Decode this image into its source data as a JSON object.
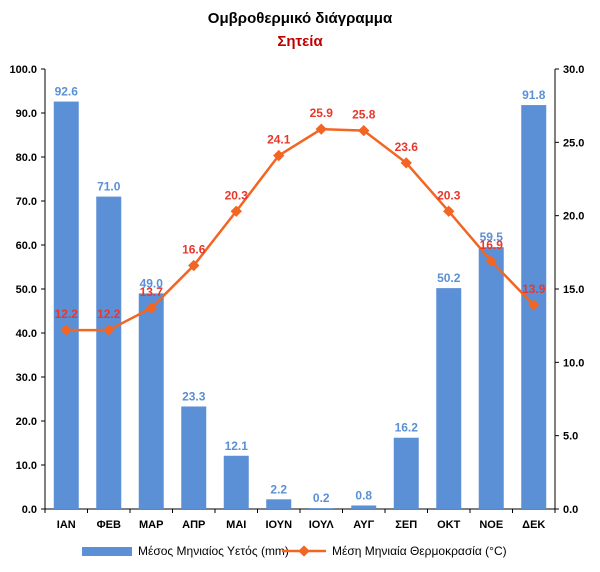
{
  "chart_data": {
    "type": "bar+line",
    "title": "Ομβροθερμικό διάγραμμα",
    "subtitle": "Σητεία",
    "categories": [
      "ΙΑΝ",
      "ΦΕΒ",
      "ΜΑΡ",
      "ΑΠΡ",
      "ΜΑΙ",
      "ΙΟΥΝ",
      "ΙΟΥΛ",
      "ΑΥΓ",
      "ΣΕΠ",
      "ΟΚΤ",
      "ΝΟΕ",
      "ΔΕΚ"
    ],
    "series": [
      {
        "name": "Μέσος Μηνιαίος Υετός (mm)",
        "kind": "bar",
        "axis": "left",
        "color": "#5b8fd6",
        "label_color": "#5b8fd6",
        "values": [
          92.6,
          71.0,
          49.0,
          23.3,
          12.1,
          2.2,
          0.2,
          0.8,
          16.2,
          50.2,
          59.5,
          91.8
        ]
      },
      {
        "name": "Μέση Μηνιαία Θερμοκρασία (°C)",
        "kind": "line",
        "axis": "right",
        "color": "#f26522",
        "label_color": "#e8372c",
        "values": [
          12.2,
          12.2,
          13.7,
          16.6,
          20.3,
          24.1,
          25.9,
          25.8,
          23.6,
          20.3,
          16.9,
          13.9
        ]
      }
    ],
    "y_left": {
      "min": 0,
      "max": 100,
      "step": 10,
      "tick_labels": [
        "0.0",
        "10.0",
        "20.0",
        "30.0",
        "40.0",
        "50.0",
        "60.0",
        "70.0",
        "80.0",
        "90.0",
        "100.0"
      ]
    },
    "y_right": {
      "min": 0,
      "max": 30,
      "step": 5,
      "tick_labels": [
        "0.0",
        "5.0",
        "10.0",
        "15.0",
        "20.0",
        "25.0",
        "30.0"
      ]
    },
    "grid": false,
    "legend_position": "bottom"
  }
}
